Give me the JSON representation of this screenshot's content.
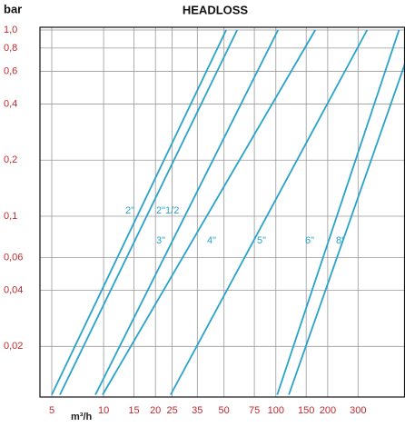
{
  "chart_data": {
    "type": "line",
    "title": "HEADLOSS",
    "y_label": "bar",
    "x_label": "m³/h",
    "log_x": true,
    "log_y": true,
    "grid": true,
    "xlim": [
      4.27,
      562
    ],
    "ylim": [
      0.0107,
      1.034
    ],
    "xticks": [
      5,
      10,
      15,
      20,
      25,
      35,
      50,
      75,
      100,
      150,
      200,
      300
    ],
    "yticks": [
      {
        "value": 1.0,
        "label": "1,0"
      },
      {
        "value": 0.8,
        "label": "0,8"
      },
      {
        "value": 0.6,
        "label": "0,6"
      },
      {
        "value": 0.4,
        "label": "0,4"
      },
      {
        "value": 0.2,
        "label": "0,2"
      },
      {
        "value": 0.1,
        "label": "0,1"
      },
      {
        "value": 0.06,
        "label": "0,06"
      },
      {
        "value": 0.04,
        "label": "0,04"
      },
      {
        "value": 0.02,
        "label": "0,02"
      }
    ],
    "series": [
      {
        "name": "2\"",
        "color": "#29a3c9",
        "x": [
          5,
          51.5
        ],
        "values": [
          0.011,
          1.0
        ]
      },
      {
        "name": "2\"1/2",
        "color": "#29a3c9",
        "x": [
          5.58,
          59.6
        ],
        "values": [
          0.011,
          1.0
        ]
      },
      {
        "name": "3\"",
        "color": "#29a3c9",
        "x": [
          8.96,
          103
        ],
        "values": [
          0.011,
          1.0
        ]
      },
      {
        "name": "4\"",
        "color": "#29a3c9",
        "x": [
          9.87,
          169.4
        ],
        "values": [
          0.011,
          1.0
        ]
      },
      {
        "name": "5\"",
        "color": "#29a3c9",
        "x": [
          24.5,
          338.6
        ],
        "values": [
          0.011,
          1.0
        ]
      },
      {
        "name": "6\"",
        "color": "#29a3c9",
        "x": [
          101.8,
          519
        ],
        "values": [
          0.011,
          1.0
        ]
      },
      {
        "name": "8\"",
        "color": "#29a3c9",
        "x": [
          119,
          562
        ],
        "values": [
          0.011,
          0.66
        ]
      }
    ]
  }
}
